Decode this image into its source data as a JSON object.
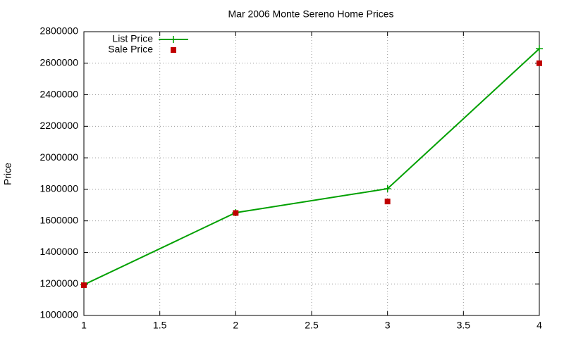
{
  "chart_data": {
    "type": "line",
    "title": "Mar 2006 Monte Sereno Home Prices",
    "y_label": "Price",
    "x": [
      1,
      2,
      3,
      4
    ],
    "series": [
      {
        "name": "List Price",
        "color": "#00a000",
        "mode": "linespoints",
        "values": [
          1195000,
          1652000,
          1804000,
          2692000
        ]
      },
      {
        "name": "Sale Price",
        "color": "#c00000",
        "mode": "points",
        "values": [
          1192000,
          1650000,
          1723000,
          2600000
        ]
      }
    ],
    "xlim": [
      1,
      4
    ],
    "xticks": [
      1,
      1.5,
      2,
      2.5,
      3,
      3.5,
      4
    ],
    "ylim": [
      1000000,
      2800000
    ],
    "yticks": [
      1000000,
      1200000,
      1400000,
      1600000,
      1800000,
      2000000,
      2200000,
      2400000,
      2600000,
      2800000
    ],
    "grid": true,
    "legend": "top-left"
  }
}
